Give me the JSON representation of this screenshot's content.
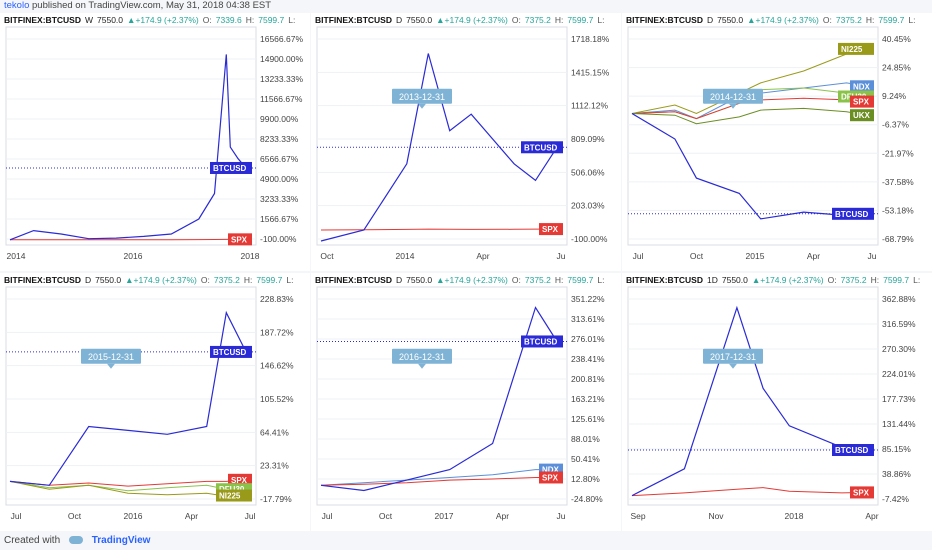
{
  "header": {
    "user": "tekolo",
    "published": "published on TradingView.com, May 31, 2018 04:38 EST"
  },
  "footer": {
    "created_with": "Created with",
    "brand": "TradingView"
  },
  "colors": {
    "btc": "#2a2ad6",
    "spx": "#e53935",
    "ndx": "#5b8fd9",
    "dfu30": "#8bc34a",
    "ni225": "#9a9a1a",
    "ukx": "#6b8e23",
    "callout": "#7fb3d5"
  },
  "panels": [
    {
      "symbol": "BITFINEX:BTCUSD",
      "interval": "W",
      "last": "7550.0",
      "change": "+174.9 (+2.37%)",
      "o_label": "O:",
      "o": "7339.6",
      "h_label": "H:",
      "h": "7599.7",
      "l_label": "L:",
      "y_ticks": [
        "16566.67%",
        "14900.00%",
        "13233.33%",
        "11566.67%",
        "9900.00%",
        "8233.33%",
        "6566.67%",
        "4900.00%",
        "3233.33%",
        "1566.67%",
        "-100.00%"
      ],
      "x_ticks": [
        "2014",
        "2016",
        "2018"
      ],
      "tags": [
        {
          "label": "BTCUSD",
          "color": "#2a2ad6"
        },
        {
          "label": "SPX",
          "color": "#e53935"
        }
      ],
      "callout": ""
    },
    {
      "symbol": "BITFINEX:BTCUSD",
      "interval": "D",
      "last": "7550.0",
      "change": "+174.9 (+2.37%)",
      "o_label": "O:",
      "o": "7375.2",
      "h_label": "H:",
      "h": "7599.7",
      "l_label": "L:",
      "y_ticks": [
        "1718.18%",
        "1415.15%",
        "1112.12%",
        "809.09%",
        "506.06%",
        "203.03%",
        "-100.00%"
      ],
      "x_ticks": [
        "Oct",
        "2014",
        "Apr",
        "Ju"
      ],
      "tags": [
        {
          "label": "BTCUSD",
          "color": "#2a2ad6"
        },
        {
          "label": "SPX",
          "color": "#e53935"
        }
      ],
      "callout": "2013-12-31"
    },
    {
      "symbol": "BITFINEX:BTCUSD",
      "interval": "D",
      "last": "7550.0",
      "change": "+174.9 (+2.37%)",
      "o_label": "O:",
      "o": "7375.2",
      "h_label": "H:",
      "h": "7599.7",
      "l_label": "L:",
      "y_ticks": [
        "40.45%",
        "24.85%",
        "9.24%",
        "-6.37%",
        "-21.97%",
        "-37.58%",
        "-53.18%",
        "-68.79%"
      ],
      "x_ticks": [
        "Jul",
        "Oct",
        "2015",
        "Apr",
        "Ju"
      ],
      "tags": [
        {
          "label": "NI225",
          "color": "#9a9a1a"
        },
        {
          "label": "NDX",
          "color": "#5b8fd9"
        },
        {
          "label": "DFU30",
          "color": "#8bc34a"
        },
        {
          "label": "SPX",
          "color": "#e53935"
        },
        {
          "label": "UKX",
          "color": "#6b8e23"
        },
        {
          "label": "BTCUSD",
          "color": "#2a2ad6"
        }
      ],
      "callout": "2014-12-31"
    },
    {
      "symbol": "BITFINEX:BTCUSD",
      "interval": "D",
      "last": "7550.0",
      "change": "+174.9 (+2.37%)",
      "o_label": "O:",
      "o": "7375.2",
      "h_label": "H:",
      "h": "7599.7",
      "l_label": "L:",
      "y_ticks": [
        "228.83%",
        "187.72%",
        "146.62%",
        "105.52%",
        "64.41%",
        "23.31%",
        "-17.79%"
      ],
      "x_ticks": [
        "Jul",
        "Oct",
        "2016",
        "Apr",
        "Jul"
      ],
      "tags": [
        {
          "label": "BTCUSD",
          "color": "#2a2ad6"
        },
        {
          "label": "SPX",
          "color": "#e53935"
        },
        {
          "label": "DFU30",
          "color": "#8bc34a"
        },
        {
          "label": "NI225",
          "color": "#9a9a1a"
        }
      ],
      "callout": "2015-12-31"
    },
    {
      "symbol": "BITFINEX:BTCUSD",
      "interval": "D",
      "last": "7550.0",
      "change": "+174.9 (+2.37%)",
      "o_label": "O:",
      "o": "7375.2",
      "h_label": "H:",
      "h": "7599.7",
      "l_label": "L:",
      "y_ticks": [
        "351.22%",
        "313.61%",
        "276.01%",
        "238.41%",
        "200.81%",
        "163.21%",
        "125.61%",
        "88.01%",
        "50.41%",
        "12.80%",
        "-24.80%"
      ],
      "x_ticks": [
        "Jul",
        "Oct",
        "2017",
        "Apr",
        "Ju"
      ],
      "tags": [
        {
          "label": "BTCUSD",
          "color": "#2a2ad6"
        },
        {
          "label": "NDX",
          "color": "#5b8fd9"
        },
        {
          "label": "SPX",
          "color": "#e53935"
        }
      ],
      "callout": "2016-12-31"
    },
    {
      "symbol": "BITFINEX:BTCUSD",
      "interval": "1D",
      "last": "7550.0",
      "change": "+174.9 (+2.37%)",
      "o_label": "O:",
      "o": "7375.2",
      "h_label": "H:",
      "h": "7599.7",
      "l_label": "L:",
      "y_ticks": [
        "362.88%",
        "316.59%",
        "270.30%",
        "224.01%",
        "177.73%",
        "131.44%",
        "85.15%",
        "38.86%",
        "-7.42%"
      ],
      "x_ticks": [
        "Sep",
        "Nov",
        "2018",
        "Apr"
      ],
      "tags": [
        {
          "label": "BTCUSD",
          "color": "#2a2ad6"
        },
        {
          "label": "SPX",
          "color": "#e53935"
        }
      ],
      "callout": "2017-12-31"
    }
  ],
  "chart_data": [
    {
      "type": "line",
      "x": [
        "2013-05",
        "2013-11",
        "2014-06",
        "2015-01",
        "2015-08",
        "2016-03",
        "2016-10",
        "2017-05",
        "2017-09",
        "2017-12",
        "2018-01",
        "2018-03",
        "2018-05"
      ],
      "series": [
        {
          "name": "BTCUSD",
          "values": [
            0,
            800,
            500,
            100,
            150,
            300,
            500,
            1800,
            4000,
            16000,
            8000,
            7000,
            6200
          ]
        },
        {
          "name": "SPX",
          "values": [
            0,
            0,
            5,
            8,
            5,
            5,
            10,
            20,
            30,
            40,
            45,
            40,
            42
          ]
        }
      ],
      "ylim": [
        -100,
        17500
      ]
    },
    {
      "type": "line",
      "x": [
        "2013-07",
        "2013-09",
        "2013-11",
        "2013-12",
        "2014-01",
        "2014-02",
        "2014-04",
        "2014-05",
        "2014-06"
      ],
      "series": [
        {
          "name": "BTCUSD",
          "values": [
            -100,
            0,
            600,
            1600,
            900,
            1050,
            600,
            450,
            750
          ]
        },
        {
          "name": "SPX",
          "values": [
            0,
            2,
            5,
            8,
            6,
            5,
            6,
            8,
            8
          ]
        }
      ],
      "ylim": [
        -100,
        1750
      ]
    },
    {
      "type": "line",
      "x": [
        "2014-07",
        "2014-09",
        "2014-10",
        "2014-12",
        "2015-01",
        "2015-03",
        "2015-05",
        "2015-06"
      ],
      "series": [
        {
          "name": "BTCUSD",
          "values": [
            0,
            -15,
            -38,
            -47,
            -62,
            -58,
            -60,
            -59
          ]
        },
        {
          "name": "NI225",
          "values": [
            0,
            5,
            0,
            12,
            18,
            25,
            35,
            38
          ]
        },
        {
          "name": "NDX",
          "values": [
            0,
            2,
            -3,
            10,
            12,
            15,
            18,
            16
          ]
        },
        {
          "name": "DFU30",
          "values": [
            0,
            1,
            -3,
            6,
            14,
            15,
            12,
            10
          ]
        },
        {
          "name": "SPX",
          "values": [
            0,
            1,
            -3,
            6,
            8,
            9,
            8,
            7
          ]
        },
        {
          "name": "UKX",
          "values": [
            0,
            -1,
            -6,
            -2,
            2,
            3,
            1,
            -1
          ]
        }
      ],
      "ylim": [
        -75,
        45
      ]
    },
    {
      "type": "line",
      "x": [
        "2015-07",
        "2015-09",
        "2015-11",
        "2016-01",
        "2016-03",
        "2016-05",
        "2016-06",
        "2016-07"
      ],
      "series": [
        {
          "name": "BTCUSD",
          "values": [
            0,
            -5,
            70,
            65,
            60,
            70,
            215,
            165
          ]
        },
        {
          "name": "SPX",
          "values": [
            0,
            -5,
            -2,
            -6,
            -3,
            0,
            0,
            2
          ]
        },
        {
          "name": "DFU30",
          "values": [
            0,
            -8,
            -5,
            -12,
            -8,
            -5,
            -10,
            -10
          ]
        },
        {
          "name": "NI225",
          "values": [
            0,
            -10,
            -5,
            -15,
            -17,
            -15,
            -19,
            -18
          ]
        }
      ],
      "ylim": [
        -25,
        235
      ]
    },
    {
      "type": "line",
      "x": [
        "2016-07",
        "2016-09",
        "2016-11",
        "2017-01",
        "2017-03",
        "2017-05",
        "2017-06"
      ],
      "series": [
        {
          "name": "BTCUSD",
          "values": [
            0,
            -10,
            10,
            30,
            80,
            340,
            275
          ]
        },
        {
          "name": "NDX",
          "values": [
            0,
            5,
            10,
            15,
            20,
            30,
            30
          ]
        },
        {
          "name": "SPX",
          "values": [
            0,
            2,
            5,
            10,
            12,
            15,
            15
          ]
        }
      ],
      "ylim": [
        -30,
        360
      ]
    },
    {
      "type": "line",
      "x": [
        "2017-08",
        "2017-10",
        "2017-12",
        "2018-01",
        "2018-02",
        "2018-04",
        "2018-05"
      ],
      "series": [
        {
          "name": "BTCUSD",
          "values": [
            0,
            50,
            350,
            200,
            130,
            90,
            85
          ]
        },
        {
          "name": "SPX",
          "values": [
            0,
            5,
            12,
            15,
            8,
            5,
            6
          ]
        }
      ],
      "ylim": [
        -10,
        370
      ]
    }
  ]
}
